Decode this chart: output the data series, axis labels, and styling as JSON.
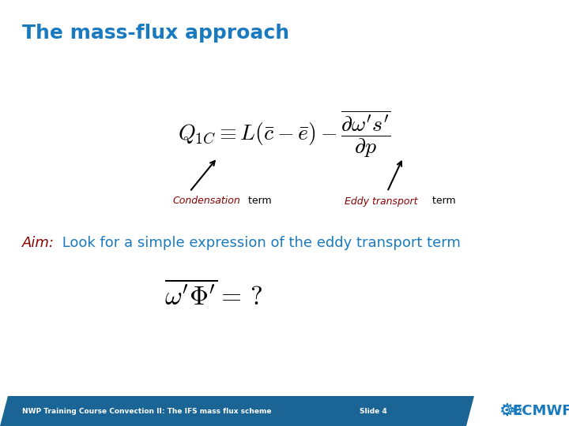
{
  "title": "The mass-flux approach",
  "title_color": "#1a7abf",
  "title_fontsize": 18,
  "bg_color": "#ffffff",
  "condensation_color": "#8b0000",
  "eddy_color": "#8b0000",
  "term_text_color": "#000000",
  "aim_prefix": "Aim:",
  "aim_prefix_color": "#8b0000",
  "aim_rest": " Look for a simple expression of the eddy transport term",
  "aim_rest_color": "#1a7abf",
  "footer_bg": "#1a6496",
  "footer_text": "NWP Training Course Convection II: The IFS mass flux scheme",
  "footer_slide": "Slide 4",
  "footer_text_color": "#ffffff",
  "ecmwf_color": "#1a7abf"
}
